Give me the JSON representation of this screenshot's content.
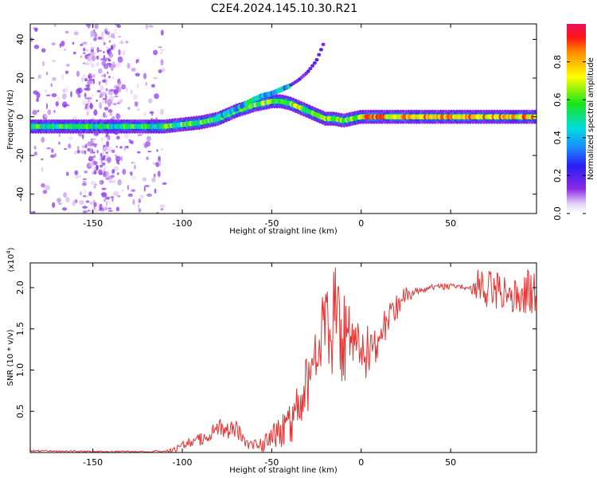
{
  "figure_title": "C2E4.2024.145.10.30.R21",
  "chart_data": [
    {
      "type": "heatmap",
      "xlabel": "Height of straight line (km)",
      "ylabel": "Frequency (Hz)",
      "xlim": [
        -185,
        98
      ],
      "ylim": [
        -50,
        48
      ],
      "xticks": [
        -150,
        -100,
        -50,
        0,
        50
      ],
      "yticks": [
        -40,
        -20,
        0,
        20,
        40
      ],
      "colorbar": {
        "label": "Normalized spectral amplitude",
        "range": [
          0,
          1
        ],
        "ticks": [
          "0.0",
          "0.2",
          "0.4",
          "0.6",
          "0.8"
        ]
      },
      "ridge": {
        "x": [
          -185,
          -160,
          -130,
          -110,
          -100,
          -90,
          -80,
          -70,
          -60,
          -50,
          -45,
          -40,
          -35,
          -30,
          -25,
          -20,
          -15,
          -10,
          -5,
          0,
          5,
          10,
          20,
          40,
          60,
          80,
          98
        ],
        "y": [
          -5,
          -5,
          -5,
          -5,
          -4,
          -3,
          -1,
          3,
          6,
          8,
          8,
          7,
          5,
          3,
          1,
          -1,
          -1,
          -2,
          -1,
          0,
          0,
          0,
          0,
          0,
          0,
          0,
          0
        ]
      },
      "upper_branch": {
        "x": [
          -80,
          -70,
          -60,
          -55,
          -50,
          -45,
          -40,
          -35,
          -30,
          -25,
          -20
        ],
        "y": [
          0,
          4,
          9,
          11,
          12,
          14,
          16,
          19,
          23,
          29,
          40
        ]
      },
      "noise_region_x": [
        -185,
        -110
      ]
    },
    {
      "type": "line",
      "xlabel": "Height of straight line (km)",
      "ylabel": "SNR (10 * v/v)",
      "y_multiplier": "(x10",
      "y_multiplier_exp": "4",
      "y_multiplier_close": ")",
      "xlim": [
        -185,
        98
      ],
      "ylim": [
        0,
        2.3
      ],
      "xticks": [
        -150,
        -100,
        -50,
        0,
        50
      ],
      "yticks": [
        "0.5",
        "1.0",
        "1.5",
        "2.0"
      ],
      "color": "#e8312f",
      "series": {
        "x": [
          -185,
          -150,
          -120,
          -105,
          -100,
          -95,
          -90,
          -85,
          -80,
          -75,
          -70,
          -65,
          -60,
          -55,
          -50,
          -45,
          -40,
          -35,
          -30,
          -25,
          -20,
          -15,
          -10,
          -5,
          0,
          5,
          10,
          15,
          20,
          25,
          30,
          40,
          50,
          60,
          65,
          70,
          80,
          90,
          98
        ],
        "y": [
          0.02,
          0.01,
          0.01,
          0.02,
          0.1,
          0.12,
          0.15,
          0.2,
          0.3,
          0.28,
          0.3,
          0.12,
          0.1,
          0.08,
          0.2,
          0.25,
          0.35,
          0.5,
          0.9,
          1.1,
          1.4,
          1.6,
          1.5,
          1.35,
          1.15,
          1.25,
          1.45,
          1.6,
          1.75,
          1.9,
          1.95,
          2.0,
          2.02,
          2.0,
          2.0,
          1.98,
          1.95,
          1.95,
          1.95
        ]
      },
      "volatility": {
        "x": [
          -185,
          -110,
          -105,
          -90,
          -75,
          -60,
          -50,
          -35,
          -25,
          -10,
          0,
          15,
          30,
          60,
          65,
          98
        ],
        "y": [
          0.01,
          0.01,
          0.04,
          0.08,
          0.12,
          0.08,
          0.12,
          0.35,
          0.6,
          0.7,
          0.4,
          0.25,
          0.05,
          0.03,
          0.22,
          0.28
        ]
      }
    }
  ]
}
